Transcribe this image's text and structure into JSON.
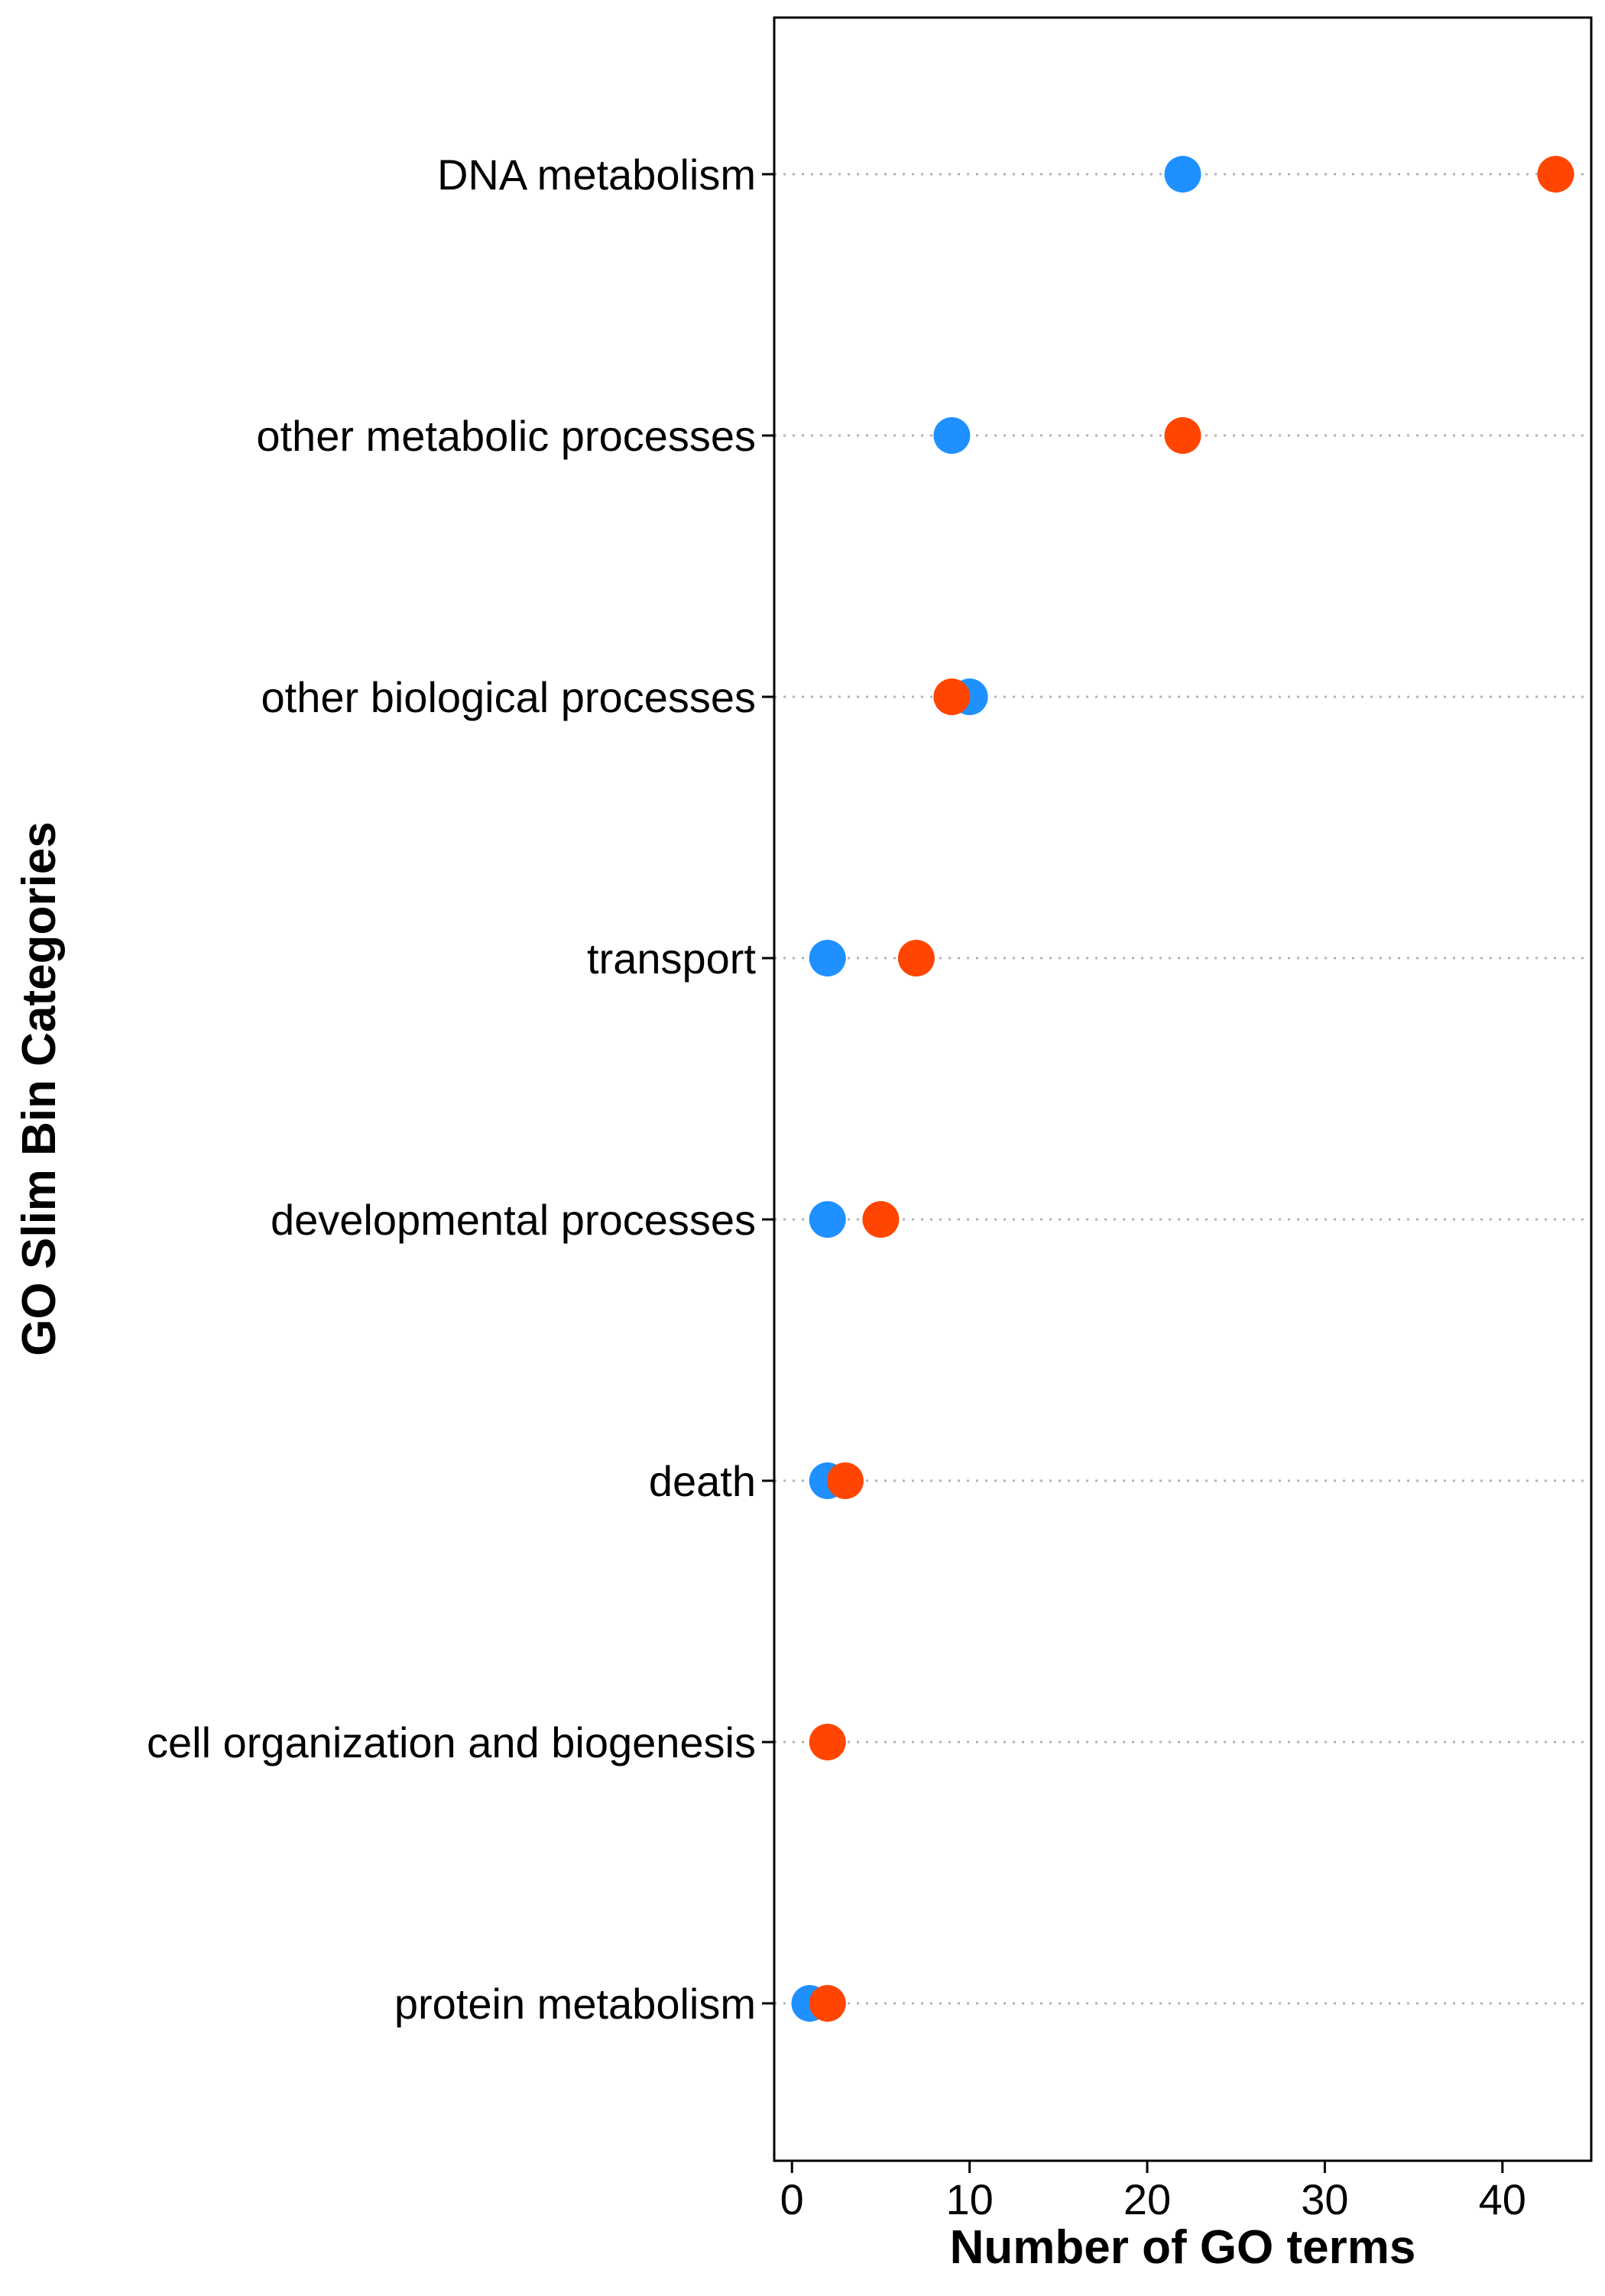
{
  "chart_data": {
    "type": "scatter",
    "xlabel": "Number of GO terms",
    "ylabel": "GO Slim Bin Categories",
    "xlim": [
      -1,
      45
    ],
    "xticks": [
      0,
      10,
      20,
      30,
      40
    ],
    "grid": "dotted horizontal guide lines",
    "legend": "none",
    "categories": [
      "DNA metabolism",
      "other metabolic processes",
      "other biological processes",
      "transport",
      "developmental processes",
      "death",
      "cell organization and biogenesis",
      "protein metabolism"
    ],
    "series": [
      {
        "color": "#1e90ff",
        "values": [
          22,
          9,
          10,
          2,
          2,
          2,
          null,
          1
        ]
      },
      {
        "color": "#ff4500",
        "values": [
          43,
          22,
          9,
          7,
          5,
          3,
          2,
          2
        ]
      }
    ]
  }
}
